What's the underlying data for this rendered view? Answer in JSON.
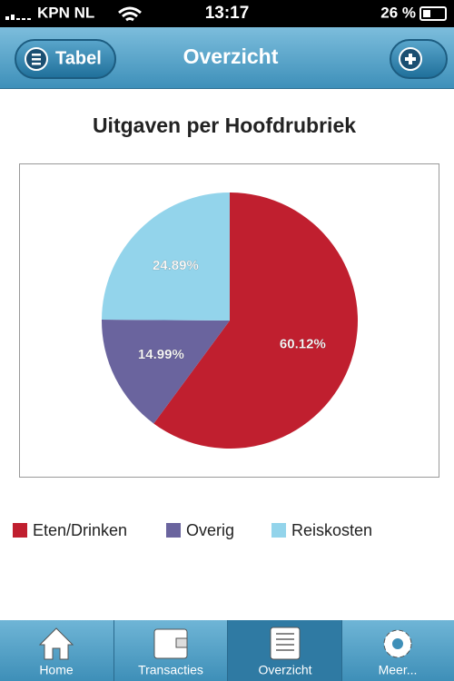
{
  "status_bar": {
    "carrier": "KPN NL",
    "time": "13:17",
    "battery": "26 %"
  },
  "nav_bar": {
    "left_button": "Tabel",
    "title": "Overzicht"
  },
  "chart_data": {
    "type": "pie",
    "title": "Uitgaven per Hoofdrubriek",
    "categories": [
      "Eten/Drinken",
      "Overig",
      "Reiskosten"
    ],
    "values": [
      60.12,
      14.99,
      24.89
    ],
    "value_labels": [
      "60.12%",
      "14.99%",
      "24.89%"
    ],
    "colors": [
      "#c01f2f",
      "#6a649e",
      "#93d4eb"
    ]
  },
  "tab_bar": {
    "tabs": [
      "Home",
      "Transacties",
      "Overzicht",
      "Meer..."
    ],
    "selected": 2
  }
}
